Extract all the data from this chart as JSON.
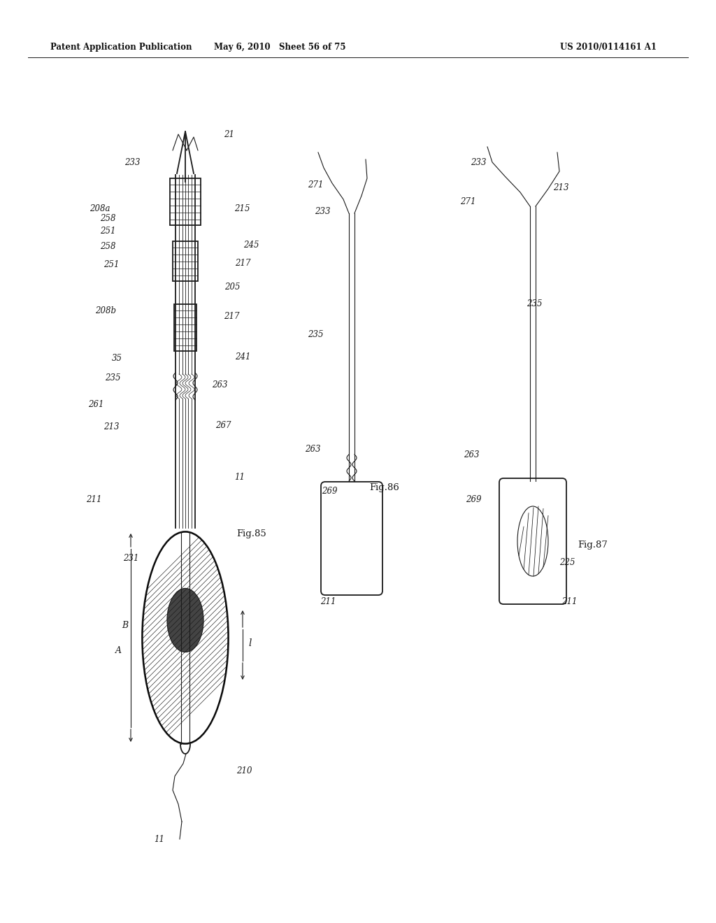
{
  "bg_color": "#ffffff",
  "lc": "#1a1a1a",
  "header_left": "Patent Application Publication",
  "header_mid": "May 6, 2010   Sheet 56 of 75",
  "header_right": "US 2010/0114161 A1"
}
